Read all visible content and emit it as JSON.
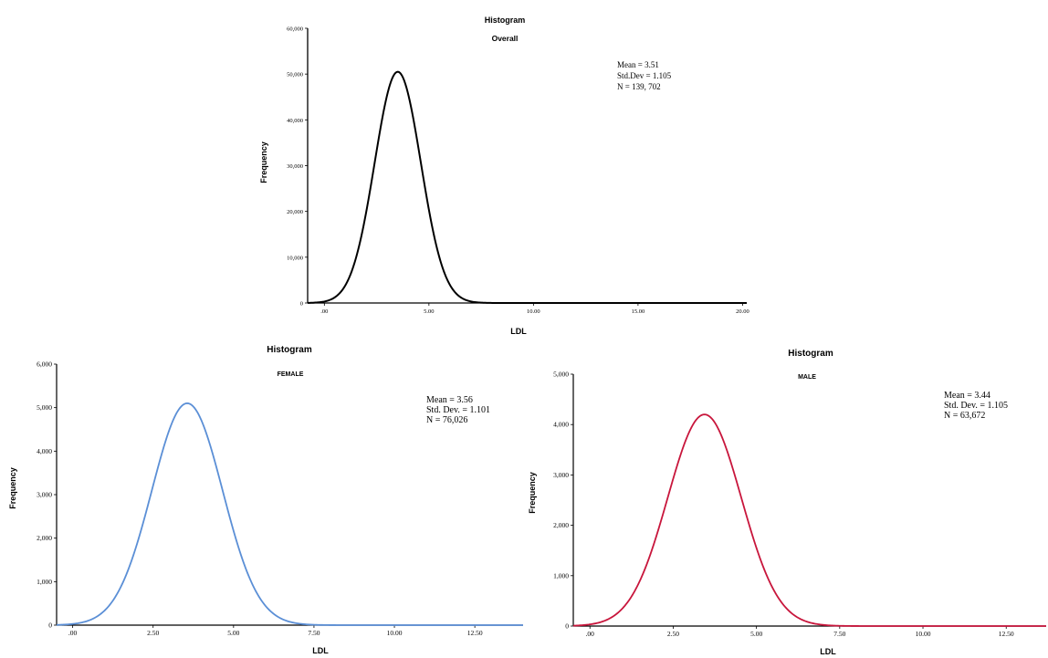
{
  "chart_data": [
    {
      "type": "line",
      "title": "Histogram",
      "subtitle": "Overall",
      "xlabel": "LDL",
      "ylabel": "Frequency",
      "xlim": [
        -0.8,
        20.2
      ],
      "ylim": [
        0,
        60000
      ],
      "x_ticks": [
        0,
        5,
        10,
        15,
        20
      ],
      "x_tick_labels": [
        ".00",
        "5.00",
        "10.00",
        "15.00",
        "20.00"
      ],
      "y_ticks": [
        0,
        10000,
        20000,
        30000,
        40000,
        50000,
        60000
      ],
      "y_tick_labels": [
        "0",
        "10,000",
        "20,000",
        "30,000",
        "40,000",
        "50,000",
        "60,000"
      ],
      "grid": false,
      "stats_lines": [
        "Mean = 3.51",
        "Std.Dev = 1.105",
        "N = 139, 702"
      ],
      "curve": {
        "type": "normal",
        "mean": 3.51,
        "sd": 1.105,
        "peak": 50500
      },
      "color": "#000000"
    },
    {
      "type": "line",
      "title": "Histogram",
      "subtitle": "FEMALE",
      "xlabel": "LDL",
      "ylabel": "Frequency",
      "xlim": [
        -0.5,
        14.0
      ],
      "ylim": [
        0,
        6000
      ],
      "x_ticks": [
        0,
        2.5,
        5,
        7.5,
        10,
        12.5
      ],
      "x_tick_labels": [
        ".00",
        "2.50",
        "5.00",
        "7.50",
        "10.00",
        "12.50"
      ],
      "y_ticks": [
        0,
        1000,
        2000,
        3000,
        4000,
        5000,
        6000
      ],
      "y_tick_labels": [
        "0",
        "1,000",
        "2,000",
        "3,000",
        "4,000",
        "5,000",
        "6,000"
      ],
      "grid": false,
      "stats_lines": [
        "Mean = 3.56",
        "Std. Dev. = 1.101",
        "N = 76,026"
      ],
      "curve": {
        "type": "normal",
        "mean": 3.56,
        "sd": 1.101,
        "peak": 5100
      },
      "color": "#5b8fd6"
    },
    {
      "type": "line",
      "title": "Histogram",
      "subtitle": "MALE",
      "xlabel": "LDL",
      "ylabel": "Frequency",
      "xlim": [
        -0.5,
        13.7
      ],
      "ylim": [
        0,
        5000
      ],
      "x_ticks": [
        0,
        2.5,
        5,
        7.5,
        10,
        12.5
      ],
      "x_tick_labels": [
        ".00",
        "2.50",
        "5.00",
        "7.50",
        "10.00",
        "12.50"
      ],
      "y_ticks": [
        0,
        1000,
        2000,
        3000,
        4000,
        5000
      ],
      "y_tick_labels": [
        "0",
        "1,000",
        "2,000",
        "3,000",
        "4,000",
        "5,000"
      ],
      "grid": false,
      "stats_lines": [
        "Mean = 3.44",
        "Std. Dev. = 1.105",
        "N = 63,672"
      ],
      "curve": {
        "type": "normal",
        "mean": 3.44,
        "sd": 1.105,
        "peak": 4200
      },
      "color": "#c8163c"
    }
  ]
}
